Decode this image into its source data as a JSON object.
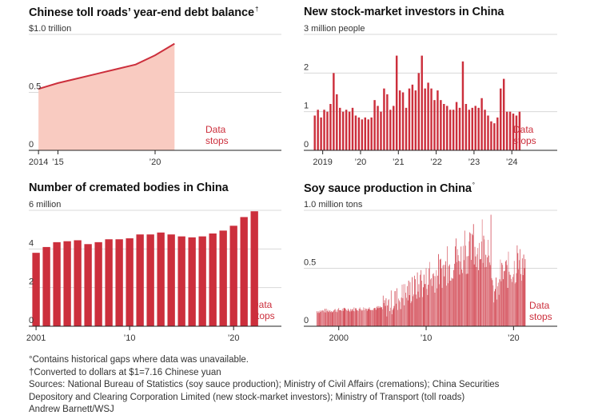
{
  "notes": [
    "°Contains historical gaps where data was unavailable.",
    "†Converted to dollars at $1=7.16 Chinese yuan",
    "Sources: National Bureau of Statistics (soy sauce production); Ministry of Civil Affairs (cremations); China Securities",
    "Depository and Clearing Corporation Limited (new stock-market investors); Ministry of Transport (toll roads)",
    "Andrew Barnett/WSJ"
  ],
  "colors": {
    "accent": "#cc2f3c",
    "area_fill": "#f9cbc1",
    "grid": "#d8d8d8",
    "axis": "#222222"
  },
  "chart_data": [
    {
      "id": "toll",
      "type": "area",
      "title": "Chinese toll roads’ year-end debt balance",
      "title_mark": "†",
      "unit_label": "$1.0 trillion",
      "ytick_labels": [
        "0",
        "0.5",
        "$1.0 trillion"
      ],
      "yticks": [
        0,
        0.5,
        1.0
      ],
      "ylim": [
        0,
        1.0
      ],
      "xlim": [
        2013.5,
        2026.5
      ],
      "xticks": [
        2014,
        2015,
        2020
      ],
      "xtick_labels": [
        "2014",
        "’15",
        "’20"
      ],
      "x": [
        2014,
        2015,
        2016,
        2017,
        2018,
        2019,
        2020,
        2021
      ],
      "values": [
        0.53,
        0.58,
        0.62,
        0.66,
        0.7,
        0.74,
        0.82,
        0.92
      ],
      "annotation": [
        "Data",
        "stops"
      ],
      "grid": true
    },
    {
      "id": "investors",
      "type": "bar",
      "title": "New stock-market investors in China",
      "unit_label": "3 million people",
      "ytick_labels": [
        "0",
        "1",
        "2",
        "3 million people"
      ],
      "yticks": [
        0,
        1,
        2,
        3
      ],
      "ylim": [
        0,
        3
      ],
      "xlim": [
        2018.5,
        2025.2
      ],
      "xticks": [
        2019,
        2020,
        2021,
        2022,
        2023,
        2024
      ],
      "xtick_labels": [
        "2019",
        "’20",
        "’21",
        "’22",
        "’23",
        "’24"
      ],
      "x_start": 2018.79,
      "x_step": 0.0833,
      "values": [
        0.9,
        1.05,
        0.85,
        1.05,
        1.0,
        1.2,
        2.0,
        1.45,
        1.1,
        1.0,
        1.05,
        1.0,
        1.1,
        0.9,
        0.85,
        0.8,
        0.85,
        0.8,
        0.85,
        1.3,
        1.15,
        1.0,
        1.6,
        1.45,
        1.05,
        1.15,
        2.45,
        1.55,
        1.5,
        1.1,
        1.6,
        1.7,
        1.55,
        2.0,
        2.45,
        1.6,
        1.75,
        1.6,
        1.3,
        1.55,
        1.3,
        1.2,
        1.15,
        1.05,
        1.05,
        1.25,
        1.1,
        2.3,
        1.2,
        1.05,
        1.1,
        1.15,
        1.1,
        1.35,
        1.05,
        0.9,
        0.75,
        0.7,
        0.85,
        1.6,
        1.85,
        1.0,
        1.0,
        0.95,
        0.9,
        1.0
      ],
      "annotation": [
        "Data",
        "stops"
      ],
      "grid": true
    },
    {
      "id": "cremated",
      "type": "bar",
      "title": "Number of cremated bodies in China",
      "unit_label": "6 million",
      "ytick_labels": [
        "0",
        "2",
        "4",
        "6 million"
      ],
      "yticks": [
        0,
        2,
        4,
        6
      ],
      "ylim": [
        0,
        6
      ],
      "xlim": [
        2000.3,
        2024.6
      ],
      "xticks": [
        2001,
        2010,
        2020
      ],
      "xtick_labels": [
        "2001",
        "’10",
        "’20"
      ],
      "x": [
        2001,
        2002,
        2003,
        2004,
        2005,
        2006,
        2007,
        2008,
        2009,
        2010,
        2011,
        2012,
        2013,
        2014,
        2015,
        2016,
        2017,
        2018,
        2019,
        2020,
        2021,
        2022
      ],
      "values": [
        3.8,
        4.1,
        4.35,
        4.4,
        4.45,
        4.25,
        4.35,
        4.5,
        4.5,
        4.55,
        4.75,
        4.75,
        4.85,
        4.75,
        4.65,
        4.6,
        4.65,
        4.8,
        4.95,
        5.2,
        5.65,
        5.95
      ],
      "annotation": [
        "Data",
        "stops"
      ],
      "grid": true
    },
    {
      "id": "soy",
      "type": "bar",
      "title": "Soy sauce production in China",
      "title_mark": "°",
      "unit_label": "1.0 million tons",
      "ytick_labels": [
        "0",
        "0.5",
        "1.0 million tons"
      ],
      "yticks": [
        0,
        0.5,
        1.0
      ],
      "ylim": [
        0,
        1.0
      ],
      "xlim": [
        1996,
        2025
      ],
      "xticks": [
        2000,
        2010,
        2020
      ],
      "xtick_labels": [
        "2000",
        "’10",
        "’20"
      ],
      "x_start": 1997.5,
      "x_end": 2021.4,
      "annotation": [
        "Data",
        "stops"
      ],
      "grid": true
    }
  ]
}
